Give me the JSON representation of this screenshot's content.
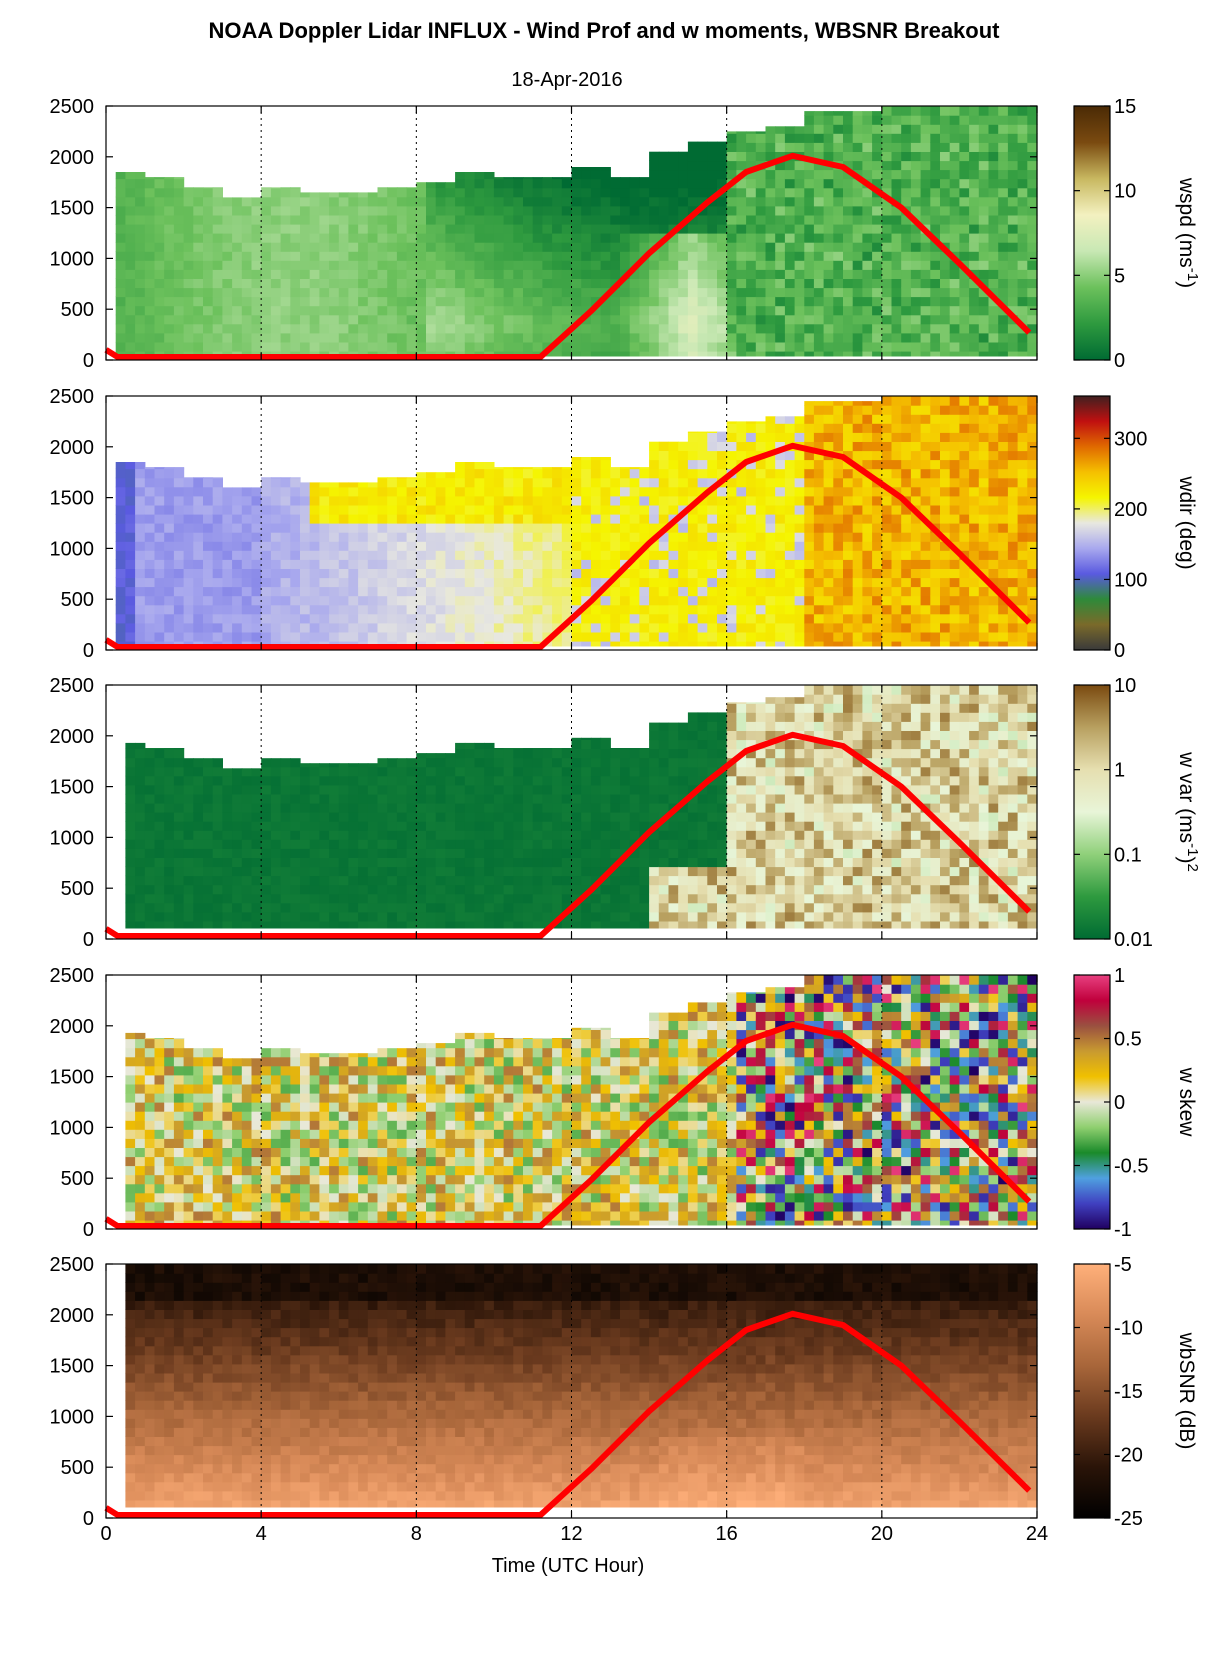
{
  "figure": {
    "title": "NOAA Doppler Lidar INFLUX - Wind Prof and w moments, WBSNR Breakout",
    "subtitle": "18-Apr-2016",
    "xlabel": "Time (UTC Hour)",
    "xticks": [
      "0",
      "4",
      "8",
      "12",
      "16",
      "20",
      "24"
    ]
  },
  "chart_data": [
    {
      "type": "heatmap",
      "name": "wspd",
      "colorbar_label": "wspd (ms",
      "colorbar_label_sup": "-1",
      "colorbar_label_end": ")",
      "colorbar_ticks": [
        "15",
        "10",
        "5",
        "0"
      ],
      "colorbar_range": [
        0,
        15
      ],
      "x_range": [
        0,
        24
      ],
      "y_range": [
        0,
        2500
      ],
      "yticks": [
        "2500",
        "2000",
        "1500",
        "1000",
        "500",
        "0"
      ],
      "top_altitude_by_hour": [
        1850,
        1800,
        1700,
        1600,
        1700,
        1650,
        1650,
        1700,
        1750,
        1850,
        1800,
        1800,
        1900,
        1800,
        2050,
        2150,
        2250,
        2300,
        2450,
        2450,
        2500,
        2500,
        2500,
        2500
      ],
      "colors": [
        "#006b33",
        "#2e9a3f",
        "#6cc15c",
        "#c8e8b4",
        "#f3f1c0",
        "#c8b860",
        "#7a4a10",
        "#4a2a05"
      ],
      "overlay": "solar elevation curve (red)"
    },
    {
      "type": "heatmap",
      "name": "wdir",
      "colorbar_label": "wdir (deg)",
      "colorbar_ticks": [
        "300",
        "200",
        "100",
        "0"
      ],
      "colorbar_range": [
        0,
        360
      ],
      "x_range": [
        0,
        24
      ],
      "y_range": [
        0,
        2500
      ],
      "yticks": [
        "2500",
        "2000",
        "1500",
        "1000",
        "500",
        "0"
      ],
      "colors": [
        "#3a3a3a",
        "#7a6a2a",
        "#2e8a3a",
        "#5a5ae0",
        "#a8a8ee",
        "#e8e8e0",
        "#f5f500",
        "#f5c000",
        "#e06a00",
        "#c01010",
        "#402020"
      ]
    },
    {
      "type": "heatmap",
      "name": "w var",
      "colorbar_label": "w var (ms",
      "colorbar_label_sup": "-1",
      "colorbar_label_end": ")",
      "colorbar_label_pow": "2",
      "colorbar_ticks": [
        "10",
        "1",
        "0.1",
        "0.01"
      ],
      "colorbar_scale": "log",
      "colorbar_range": [
        0.01,
        10
      ],
      "x_range": [
        0,
        24
      ],
      "y_range": [
        0,
        2500
      ],
      "yticks": [
        "2500",
        "2000",
        "1500",
        "1000",
        "500",
        "0"
      ],
      "colors": [
        "#006b33",
        "#2e9a3f",
        "#8fd07a",
        "#e8f5d8",
        "#e6dfb0",
        "#b8a060",
        "#7a4a10"
      ]
    },
    {
      "type": "heatmap",
      "name": "w skew",
      "colorbar_label": "w skew",
      "colorbar_ticks": [
        "1",
        "0.5",
        "0",
        "-0.5",
        "-1"
      ],
      "colorbar_range": [
        -1,
        1
      ],
      "x_range": [
        0,
        24
      ],
      "y_range": [
        0,
        2500
      ],
      "yticks": [
        "2500",
        "2000",
        "1500",
        "1000",
        "500",
        "0"
      ],
      "colors": [
        "#200060",
        "#4040c0",
        "#4fa0e0",
        "#1a8a2a",
        "#8fcf6f",
        "#e8e8d8",
        "#f0c000",
        "#c89a30",
        "#9a5040",
        "#c0003c",
        "#e84080"
      ]
    },
    {
      "type": "heatmap",
      "name": "wbSNR",
      "colorbar_label": "wbSNR (dB)",
      "colorbar_ticks": [
        "-5",
        "-10",
        "-15",
        "-20",
        "-25"
      ],
      "colorbar_range": [
        -25,
        -5
      ],
      "x_range": [
        0,
        24
      ],
      "y_range": [
        0,
        2500
      ],
      "yticks": [
        "2500",
        "2000",
        "1500",
        "1000",
        "500",
        "0"
      ],
      "colors": [
        "#000000",
        "#2a1408",
        "#6a3a1e",
        "#a8663a",
        "#d88a58",
        "#ffb07a"
      ]
    }
  ],
  "overlay_curve": {
    "description": "red curve drawn on every panel",
    "color": "#ff0000",
    "points_hour_alt": [
      [
        0,
        100
      ],
      [
        0.3,
        30
      ],
      [
        11.2,
        30
      ],
      [
        12.5,
        480
      ],
      [
        14,
        1050
      ],
      [
        15.5,
        1550
      ],
      [
        16.5,
        1850
      ],
      [
        17.7,
        2010
      ],
      [
        19,
        1900
      ],
      [
        20.5,
        1500
      ],
      [
        22,
        950
      ],
      [
        23.8,
        270
      ]
    ]
  }
}
